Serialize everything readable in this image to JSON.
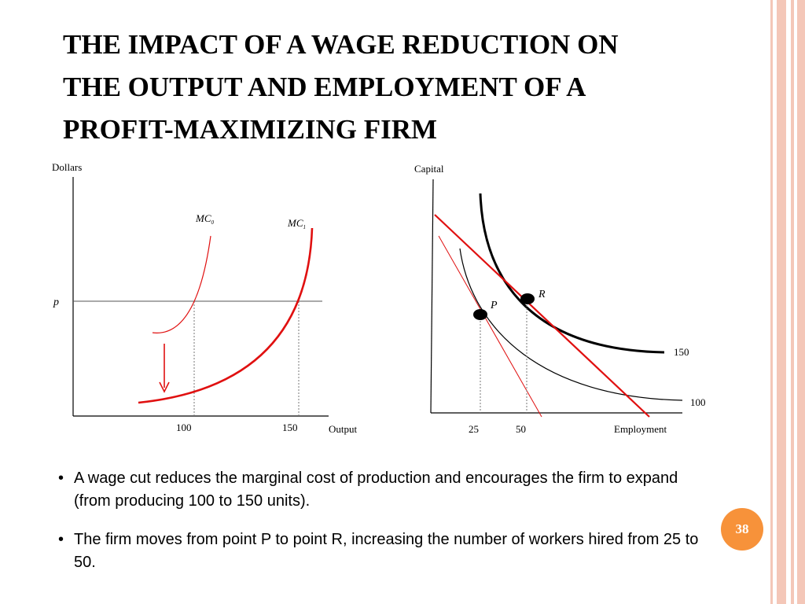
{
  "slide": {
    "title_lines": [
      "THE IMPACT OF A WAGE REDUCTION ON",
      "THE OUTPUT AND EMPLOYMENT OF A",
      "PROFIT-MAXIMIZING FIRM"
    ],
    "page_number": "38",
    "accent_color": "#f7923a",
    "stripe_color": "#f4c7b8"
  },
  "left_graph": {
    "y_axis_label": "Dollars",
    "x_axis_label": "Output",
    "price_label": "p",
    "curve_labels": [
      {
        "base": "MC",
        "sub": "0"
      },
      {
        "base": "MC",
        "sub": "1"
      }
    ],
    "x_ticks": [
      "100",
      "150"
    ],
    "curve_color": "#e01010"
  },
  "right_graph": {
    "y_axis_label": "Capital",
    "x_axis_label": "Employment",
    "point_labels": [
      "P",
      "R"
    ],
    "isoquant_labels": [
      "150",
      "100"
    ],
    "x_ticks": [
      "25",
      "50"
    ],
    "isocost_color": "#e01010"
  },
  "bullets": [
    "A wage cut reduces the marginal cost of production and encourages the firm to expand (from producing 100 to 150 units).",
    "The firm moves from point P to point R, increasing the number of workers hired from 25 to 50."
  ]
}
